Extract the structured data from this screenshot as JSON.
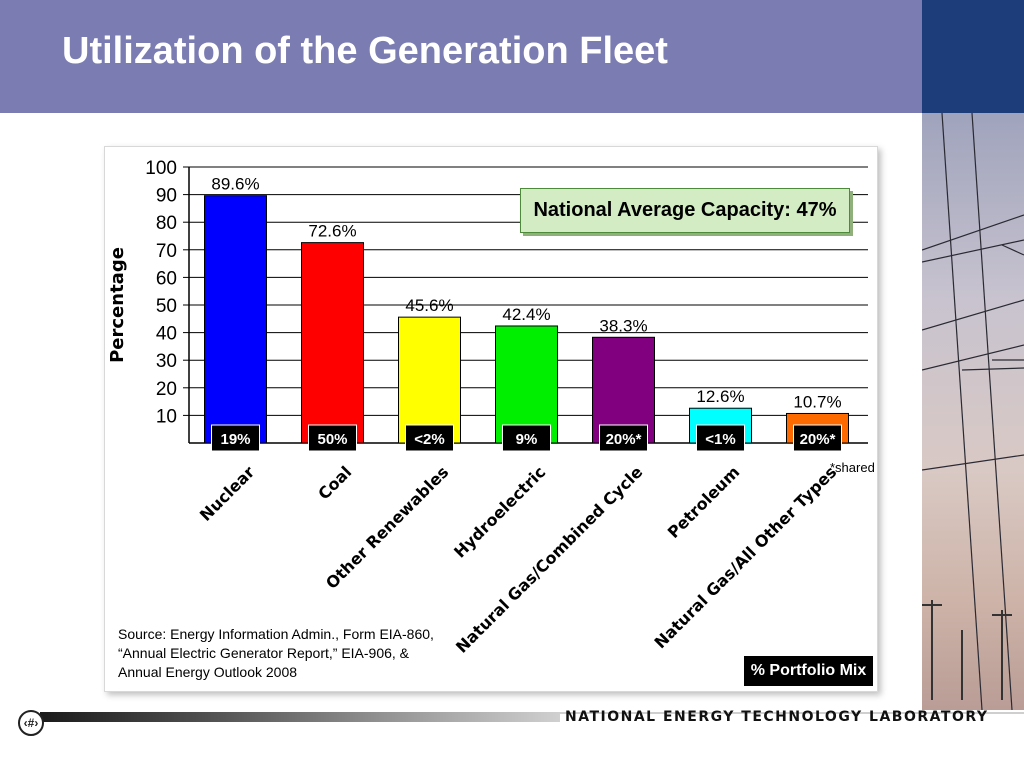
{
  "slide": {
    "title": "Utilization of the Generation Fleet",
    "page_number": "‹#›",
    "organization": "NATIONAL ENERGY TECHNOLOGY LABORATORY"
  },
  "colors": {
    "title_bar": "#7b7cb1",
    "note_box": "#d3ecc4"
  },
  "annotations": {
    "national_average": "National Average Capacity: 47%",
    "shared_note": "*shared",
    "portfolio_label": "% Portfolio Mix",
    "source_lines": [
      "Source: Energy Information Admin., Form EIA-860,",
      "“Annual Electric Generator Report,” EIA-906, &",
      "Annual Energy Outlook 2008"
    ]
  },
  "chart_data": {
    "type": "bar",
    "ylabel": "Percentage",
    "ylim": [
      0,
      100
    ],
    "yticks": [
      10,
      20,
      30,
      40,
      50,
      60,
      70,
      80,
      90,
      100
    ],
    "grid": true,
    "categories": [
      "Nuclear",
      "Coal",
      "Other Renewables",
      "Hydroelectric",
      "Natural Gas/Combined Cycle",
      "Petroleum",
      "Natural Gas/All Other Types"
    ],
    "values": [
      89.6,
      72.6,
      45.6,
      42.4,
      38.3,
      12.6,
      10.7
    ],
    "value_labels": [
      "89.6%",
      "72.6%",
      "45.6%",
      "42.4%",
      "38.3%",
      "12.6%",
      "10.7%"
    ],
    "portfolio_mix": [
      "19%",
      "50%",
      "<2%",
      "9%",
      "20%*",
      "<1%",
      "20%*"
    ],
    "bar_colors": [
      "#0000ff",
      "#ff0000",
      "#ffff00",
      "#00ee00",
      "#800080",
      "#00ffff",
      "#ff6a00"
    ]
  }
}
